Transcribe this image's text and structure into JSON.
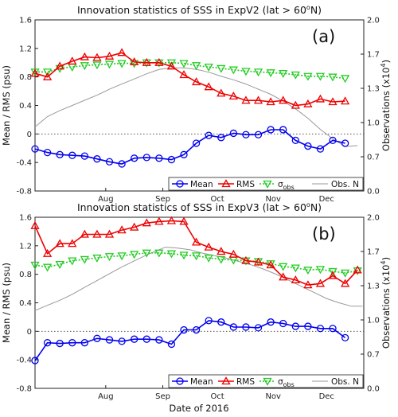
{
  "figure": {
    "xlabel": "Date of 2016"
  },
  "colors": {
    "mean": "#0000ee",
    "rms": "#ee0000",
    "sigma": "#22cc22",
    "obs": "#999999"
  },
  "chart_data": [
    {
      "type": "line",
      "title": "Innovation statistics of SSS in ExpV2 (lat > 60",
      "title_sup": "o",
      "title_tail": "N)",
      "panel_label": "(a)",
      "ylabel": "Mean / RMS (psu)",
      "ylabel2": "Observations (x10",
      "ylabel2_sup": "4",
      "ylabel2_tail": ")",
      "ylim": [
        -0.8,
        1.6
      ],
      "ylim2": [
        0.0,
        2.0
      ],
      "yticks": [
        "-0.8",
        "-0.4",
        "0",
        "0.4",
        "0.8",
        "1.2",
        "1.6"
      ],
      "yticks2": [
        "0.0",
        "0.7",
        "1.0",
        "1.3",
        "1.7",
        "2.0"
      ],
      "xlim": [
        0,
        26.5
      ],
      "x_ticks": [
        {
          "label": "Aug",
          "x": 5.7
        },
        {
          "label": "Sep",
          "x": 10.3
        },
        {
          "label": "Oct",
          "x": 14.7
        },
        {
          "label": "Nov",
          "x": 19.2
        },
        {
          "label": "Dec",
          "x": 23.5
        }
      ],
      "legend": {
        "mean": "Mean",
        "rms": "RMS",
        "sigma": "σ",
        "sigma_sub": "obs",
        "obs": "Obs. N"
      },
      "series": {
        "mean": [
          -0.21,
          -0.26,
          -0.29,
          -0.3,
          -0.31,
          -0.35,
          -0.39,
          -0.42,
          -0.34,
          -0.33,
          -0.34,
          -0.36,
          -0.29,
          -0.13,
          -0.02,
          -0.05,
          0.01,
          -0.01,
          -0.01,
          0.06,
          0.06,
          -0.09,
          -0.17,
          -0.21,
          -0.09,
          -0.13
        ],
        "rms": [
          0.85,
          0.8,
          0.95,
          1.02,
          1.08,
          1.07,
          1.09,
          1.14,
          1.01,
          1.0,
          1.0,
          0.95,
          0.83,
          0.73,
          0.66,
          0.57,
          0.53,
          0.47,
          0.47,
          0.45,
          0.47,
          0.4,
          0.42,
          0.49,
          0.45,
          0.46
        ],
        "sigma": [
          0.87,
          0.87,
          0.92,
          0.94,
          0.96,
          0.97,
          0.98,
          0.99,
          0.99,
          1.0,
          1.0,
          1.0,
          0.99,
          0.96,
          0.94,
          0.92,
          0.9,
          0.88,
          0.87,
          0.86,
          0.85,
          0.83,
          0.81,
          0.81,
          0.8,
          0.78
        ],
        "obs": [
          [
            0,
            0.75
          ],
          [
            1,
            0.87
          ],
          [
            2,
            0.94
          ],
          [
            3,
            1.0
          ],
          [
            4,
            1.06
          ],
          [
            5,
            1.12
          ],
          [
            6,
            1.19
          ],
          [
            7,
            1.25
          ],
          [
            8,
            1.31
          ],
          [
            9,
            1.37
          ],
          [
            10,
            1.42
          ],
          [
            11,
            1.44
          ],
          [
            11.8,
            1.44
          ],
          [
            12.6,
            1.43
          ],
          [
            13.4,
            1.41
          ],
          [
            14.2,
            1.38
          ],
          [
            15,
            1.34
          ],
          [
            16,
            1.3
          ],
          [
            17,
            1.25
          ],
          [
            18,
            1.19
          ],
          [
            19,
            1.13
          ],
          [
            20,
            1.05
          ],
          [
            21,
            0.96
          ],
          [
            22,
            0.85
          ],
          [
            23,
            0.72
          ],
          [
            24,
            0.61
          ],
          [
            25,
            0.52
          ],
          [
            26,
            0.53
          ]
        ]
      }
    },
    {
      "type": "line",
      "title": "Innovation statistics of SSS in ExpV3 (lat > 60",
      "title_sup": "o",
      "title_tail": "N)",
      "panel_label": "(b)",
      "ylabel": "Mean / RMS (psu)",
      "ylabel2": "Observations (x10",
      "ylabel2_sup": "4",
      "ylabel2_tail": ")",
      "ylim": [
        -0.8,
        1.6
      ],
      "ylim2": [
        0.0,
        2.0
      ],
      "yticks": [
        "-0.8",
        "-0.4",
        "0",
        "0.4",
        "0.8",
        "1.2",
        "1.6"
      ],
      "yticks2": [
        "0.0",
        "0.7",
        "1.0",
        "1.3",
        "1.7",
        "2.0"
      ],
      "xlim": [
        0,
        26.5
      ],
      "x_ticks": [
        {
          "label": "Aug",
          "x": 5.7
        },
        {
          "label": "Sep",
          "x": 10.3
        },
        {
          "label": "Oct",
          "x": 14.7
        },
        {
          "label": "Nov",
          "x": 19.2
        },
        {
          "label": "Dec",
          "x": 23.5
        }
      ],
      "legend": {
        "mean": "Mean",
        "rms": "RMS",
        "sigma": "σ",
        "sigma_sub": "obs",
        "obs": "Obs. N"
      },
      "series": {
        "mean": [
          -0.41,
          -0.16,
          -0.17,
          -0.16,
          -0.16,
          -0.1,
          -0.12,
          -0.14,
          -0.11,
          -0.11,
          -0.12,
          -0.18,
          0.02,
          0.02,
          0.15,
          0.13,
          0.06,
          0.06,
          0.05,
          0.13,
          0.11,
          0.07,
          0.07,
          0.04,
          0.04,
          -0.09
        ],
        "rms": [
          1.48,
          1.09,
          1.23,
          1.23,
          1.36,
          1.36,
          1.36,
          1.42,
          1.46,
          1.52,
          1.54,
          1.55,
          1.54,
          1.25,
          1.18,
          1.12,
          1.08,
          0.99,
          0.97,
          0.93,
          0.76,
          0.72,
          0.65,
          0.67,
          0.78,
          0.67,
          0.86
        ],
        "sigma": [
          0.93,
          0.9,
          0.94,
          0.99,
          1.01,
          1.03,
          1.05,
          1.06,
          1.08,
          1.1,
          1.1,
          1.09,
          1.07,
          1.06,
          1.03,
          1.01,
          1.0,
          0.99,
          0.98,
          0.95,
          0.91,
          0.89,
          0.86,
          0.87,
          0.84,
          0.82,
          0.85
        ],
        "obs": [
          [
            0,
            0.91
          ],
          [
            1,
            0.97
          ],
          [
            2,
            1.03
          ],
          [
            3,
            1.1
          ],
          [
            4,
            1.18
          ],
          [
            5,
            1.26
          ],
          [
            6,
            1.34
          ],
          [
            7,
            1.42
          ],
          [
            8,
            1.49
          ],
          [
            9,
            1.56
          ],
          [
            10,
            1.62
          ],
          [
            10.5,
            1.65
          ],
          [
            11.5,
            1.64
          ],
          [
            12.5,
            1.62
          ],
          [
            13.5,
            1.58
          ],
          [
            14.5,
            1.55
          ],
          [
            15.5,
            1.52
          ],
          [
            16.5,
            1.48
          ],
          [
            17.5,
            1.44
          ],
          [
            18.5,
            1.39
          ],
          [
            19.5,
            1.33
          ],
          [
            20.5,
            1.26
          ],
          [
            21.5,
            1.19
          ],
          [
            22.5,
            1.12
          ],
          [
            23.5,
            1.05
          ],
          [
            24.5,
            1.0
          ],
          [
            25.5,
            0.96
          ],
          [
            26.4,
            0.96
          ]
        ]
      }
    }
  ]
}
